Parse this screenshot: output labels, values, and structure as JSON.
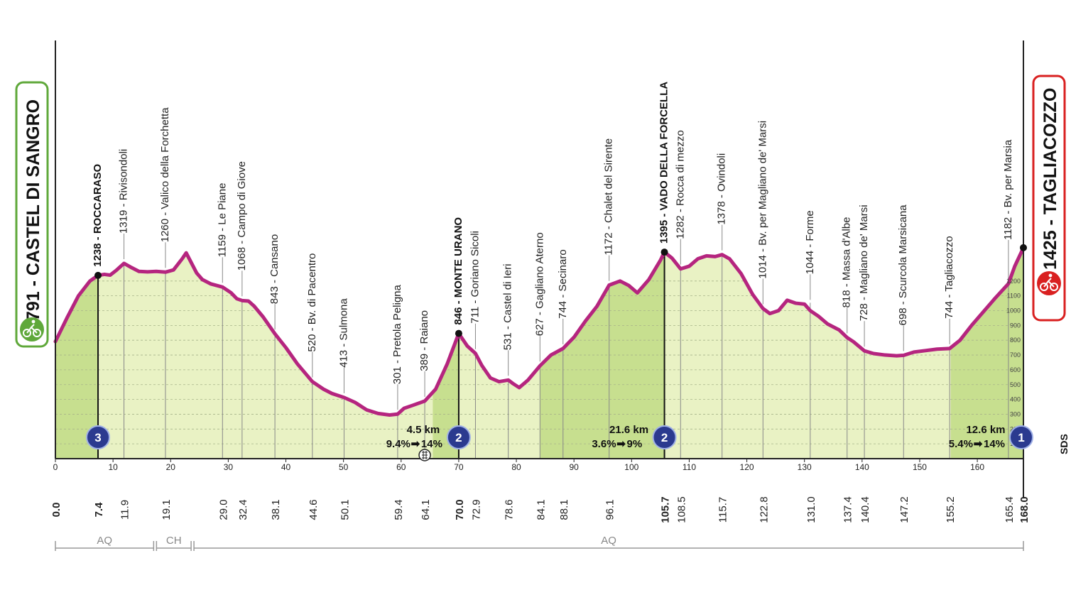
{
  "start": {
    "label": "791 - CASTEL DI SANGRO",
    "border_color": "#5fa83a",
    "icon": "cyclist-icon"
  },
  "finish": {
    "label": "1425 - TAGLIACOZZO",
    "border_color": "#d92020",
    "icon": "cyclist-icon"
  },
  "colors": {
    "profile_line": "#b5257f",
    "fill": "#e9f2c4",
    "fill_climb": "#c7df8f",
    "climb_badge": "#2b3a8f"
  },
  "brand": "SDS",
  "chart_data": {
    "type": "area",
    "xlabel": "",
    "ylabel": "",
    "xlim": [
      0,
      168
    ],
    "ylim": [
      0,
      1500
    ],
    "x_ticks": [
      0,
      10,
      20,
      30,
      40,
      50,
      60,
      70,
      80,
      90,
      100,
      110,
      120,
      130,
      140,
      150,
      160
    ],
    "y_ticks": [
      100,
      200,
      300,
      400,
      500,
      600,
      700,
      800,
      900,
      1000,
      1100,
      1200
    ],
    "profile": {
      "km": [
        0,
        2,
        4,
        6,
        7.4,
        8.5,
        9.5,
        10.5,
        11.9,
        13,
        14.5,
        16,
        17.5,
        19.1,
        20.5,
        22,
        22.7,
        23.5,
        24.5,
        25.5,
        27,
        29.0,
        30.5,
        31.5,
        32.4,
        33.5,
        34.5,
        36,
        38.1,
        40,
        42,
        44.6,
        46.5,
        48,
        50.1,
        52,
        54,
        56,
        58,
        59.4,
        60.5,
        62,
        64.1,
        66,
        68,
        70.0,
        71.5,
        72.9,
        74,
        75.5,
        77,
        78.6,
        79.5,
        80.5,
        82,
        84.1,
        86,
        88.1,
        90,
        92,
        94,
        96.1,
        98,
        99.5,
        101,
        103,
        105,
        105.7,
        107,
        108.5,
        110,
        111.5,
        113,
        114.5,
        115.7,
        117,
        119,
        121,
        122.8,
        124,
        125.5,
        127,
        128.5,
        130,
        131.0,
        132.5,
        134,
        136,
        137.4,
        138.5,
        140.4,
        142,
        144,
        146,
        147.2,
        149,
        151,
        153,
        155.2,
        157,
        159,
        161,
        163,
        165.4,
        166.5,
        168
      ],
      "alt": [
        791,
        950,
        1100,
        1200,
        1238,
        1245,
        1240,
        1270,
        1319,
        1295,
        1265,
        1262,
        1265,
        1260,
        1275,
        1350,
        1390,
        1330,
        1255,
        1210,
        1180,
        1159,
        1120,
        1080,
        1068,
        1065,
        1030,
        960,
        843,
        750,
        640,
        520,
        470,
        440,
        413,
        380,
        330,
        305,
        295,
        301,
        340,
        360,
        389,
        470,
        640,
        846,
        760,
        711,
        630,
        545,
        520,
        531,
        505,
        480,
        530,
        627,
        700,
        744,
        820,
        930,
        1030,
        1172,
        1200,
        1170,
        1120,
        1210,
        1340,
        1395,
        1355,
        1282,
        1300,
        1350,
        1370,
        1365,
        1378,
        1350,
        1250,
        1110,
        1014,
        980,
        1000,
        1070,
        1050,
        1044,
        1000,
        960,
        910,
        870,
        818,
        790,
        728,
        710,
        700,
        695,
        698,
        720,
        730,
        740,
        744,
        800,
        900,
        990,
        1080,
        1182,
        1300,
        1425
      ]
    },
    "locations": [
      {
        "km": 7.4,
        "alt": 1238,
        "name": "ROCCARASO",
        "label": "1238 - ROCCARASO",
        "dist": "7.4",
        "bold": true
      },
      {
        "km": 11.9,
        "alt": 1319,
        "name": "Rivisondoli",
        "label": "1319 - Rivisondoli",
        "dist": "11.9",
        "bold": false
      },
      {
        "km": 19.1,
        "alt": 1260,
        "name": "Valico della Forchetta",
        "label": "1260 - Valico della Forchetta",
        "dist": "19.1",
        "bold": false
      },
      {
        "km": 29.0,
        "alt": 1159,
        "name": "Le Piane",
        "label": "1159 - Le Piane",
        "dist": "29.0",
        "bold": false
      },
      {
        "km": 32.4,
        "alt": 1068,
        "name": "Campo di Giove",
        "label": "1068 - Campo di Giove",
        "dist": "32.4",
        "bold": false
      },
      {
        "km": 38.1,
        "alt": 843,
        "name": "Cansano",
        "label": "843 - Cansano",
        "dist": "38.1",
        "bold": false
      },
      {
        "km": 44.6,
        "alt": 520,
        "name": "Bv. di Pacentro",
        "label": "520 - Bv. di Pacentro",
        "dist": "44.6",
        "bold": false
      },
      {
        "km": 50.1,
        "alt": 413,
        "name": "Sulmona",
        "label": "413 - Sulmona",
        "dist": "50.1",
        "bold": false
      },
      {
        "km": 59.4,
        "alt": 301,
        "name": "Pretola Peligna",
        "label": "301 - Pretola Peligna",
        "dist": "59.4",
        "bold": false
      },
      {
        "km": 64.1,
        "alt": 389,
        "name": "Raiano",
        "label": "389 - Raiano",
        "dist": "64.1",
        "bold": false
      },
      {
        "km": 70.0,
        "alt": 846,
        "name": "MONTE URANO",
        "label": "846 - MONTE URANO",
        "dist": "70.0",
        "bold": true
      },
      {
        "km": 72.9,
        "alt": 711,
        "name": "Goriano Sicoli",
        "label": "711 - Goriano Sicoli",
        "dist": "72.9",
        "bold": false
      },
      {
        "km": 78.6,
        "alt": 531,
        "name": "Castel di Ieri",
        "label": "531 - Castel di Ieri",
        "dist": "78.6",
        "bold": false
      },
      {
        "km": 84.1,
        "alt": 627,
        "name": "Gagliano Aterno",
        "label": "627 - Gagliano Aterno",
        "dist": "84.1",
        "bold": false
      },
      {
        "km": 88.1,
        "alt": 744,
        "name": "Secinaro",
        "label": "744 - Secinaro",
        "dist": "88.1",
        "bold": false
      },
      {
        "km": 96.1,
        "alt": 1172,
        "name": "Chalet del Sirente",
        "label": "1172 - Chalet del Sirente",
        "dist": "96.1",
        "bold": false
      },
      {
        "km": 105.7,
        "alt": 1395,
        "name": "VADO DELLA FORCELLA",
        "label": "1395 - VADO DELLA FORCELLA",
        "dist": "105.7",
        "bold": true
      },
      {
        "km": 108.5,
        "alt": 1282,
        "name": "Rocca di mezzo",
        "label": "1282 - Rocca di mezzo",
        "dist": "108.5",
        "bold": false
      },
      {
        "km": 115.7,
        "alt": 1378,
        "name": "Ovindoli",
        "label": "1378 - Ovindoli",
        "dist": "115.7",
        "bold": false
      },
      {
        "km": 122.8,
        "alt": 1014,
        "name": "Bv. per Magliano de' Marsi",
        "label": "1014 - Bv. per Magliano de' Marsi",
        "dist": "122.8",
        "bold": false
      },
      {
        "km": 131.0,
        "alt": 1044,
        "name": "Forme",
        "label": "1044 - Forme",
        "dist": "131.0",
        "bold": false
      },
      {
        "km": 137.4,
        "alt": 818,
        "name": "Massa d'Albe",
        "label": "818 - Massa d'Albe",
        "dist": "137.4",
        "bold": false
      },
      {
        "km": 140.4,
        "alt": 728,
        "name": "Magliano de' Marsi",
        "label": "728 - Magliano de' Marsi",
        "dist": "140.4",
        "bold": false
      },
      {
        "km": 147.2,
        "alt": 698,
        "name": "Scurcola Marsicana",
        "label": "698 - Scurcola Marsicana",
        "dist": "147.2",
        "bold": false
      },
      {
        "km": 155.2,
        "alt": 744,
        "name": "Tagliacozzo",
        "label": "744 - Tagliacozzo",
        "dist": "155.2",
        "bold": false
      },
      {
        "km": 165.4,
        "alt": 1182,
        "name": "Bv. per Marsia",
        "label": "1182 - Bv. per Marsia",
        "dist": "165.4",
        "bold": false
      }
    ],
    "endpoints": [
      {
        "km": 0,
        "dist": "0.0"
      },
      {
        "km": 168,
        "dist": "168.0"
      }
    ],
    "climbs": [
      {
        "km": 7.4,
        "category": "3",
        "from_km": 0
      },
      {
        "km": 70.0,
        "category": "2",
        "from_km": 65.5,
        "length": "4.5 km",
        "gradient": "9.4%",
        "max_gradient": "14%"
      },
      {
        "km": 105.7,
        "category": "2",
        "from_km": 84.1,
        "length": "21.6 km",
        "gradient": "3.6%",
        "max_gradient": "9%"
      },
      {
        "km": 168.0,
        "category": "1",
        "from_km": 155.4,
        "length": "12.6 km",
        "gradient": "5.4%",
        "max_gradient": "14%"
      }
    ],
    "intermediate_sprint_km": 64.1,
    "regions": [
      {
        "label": "AQ",
        "from_km": 0,
        "to_km": 17.3
      },
      {
        "label": "CH",
        "from_km": 17.3,
        "to_km": 23.8
      },
      {
        "label": "AQ",
        "from_km": 23.8,
        "to_km": 168
      }
    ]
  }
}
